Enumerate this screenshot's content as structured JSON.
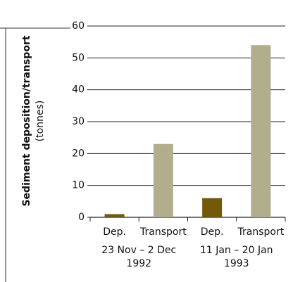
{
  "chart_data": {
    "type": "bar",
    "ylabel": "Sediment deposition/transport",
    "yunit": "(tonnes)",
    "categories": [
      "Dep.",
      "Transport",
      "Dep.",
      "Transport"
    ],
    "values": [
      1,
      23,
      6,
      54
    ],
    "colors": [
      "#735a08",
      "#b2ae8d",
      "#735a08",
      "#b2ae8d"
    ],
    "groups": [
      [
        "23 Nov – 2 Dec",
        "1992"
      ],
      [
        "11 Jan – 20 Jan",
        "1993"
      ]
    ],
    "ylim": [
      0,
      60
    ],
    "yticks": [
      0,
      10,
      20,
      30,
      40,
      50,
      60
    ],
    "grid": true
  }
}
